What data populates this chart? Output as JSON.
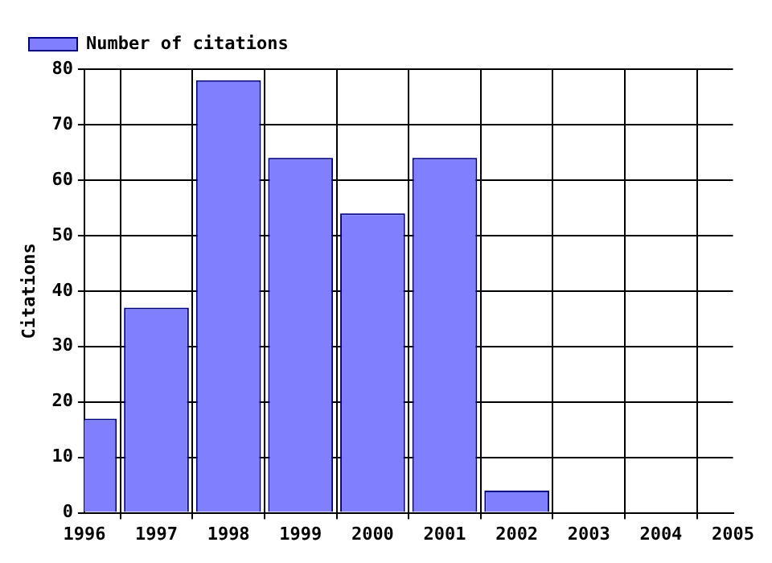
{
  "chart_data": {
    "type": "bar",
    "ylabel": "Citations",
    "x": [
      1996,
      1997,
      1998,
      1999,
      2000,
      2001,
      2002
    ],
    "series": [
      {
        "name": "Number of citations",
        "color": "#8080ff",
        "values": [
          17,
          37,
          78,
          64,
          54,
          64,
          4
        ]
      }
    ],
    "xlim": [
      1996,
      2005
    ],
    "xticks": [
      1996,
      1997,
      1998,
      1999,
      2000,
      2001,
      2002,
      2003,
      2004,
      2005
    ],
    "ylim": [
      0,
      80
    ],
    "yticks": [
      0,
      10,
      20,
      30,
      40,
      50,
      60,
      70,
      80
    ],
    "grid": true,
    "legend": "top left"
  }
}
